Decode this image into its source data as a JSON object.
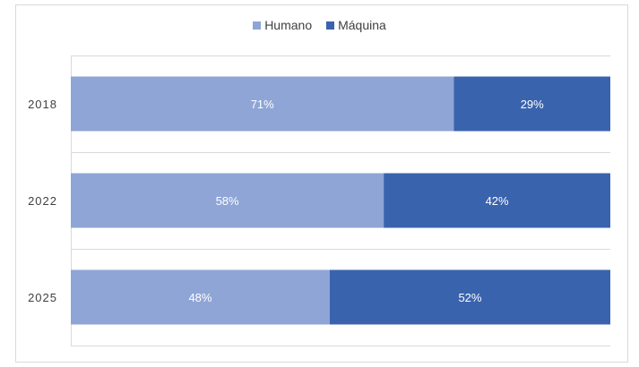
{
  "chart_data": {
    "type": "bar",
    "orientation": "horizontal",
    "stacked": "percent",
    "title": "",
    "xlabel": "",
    "ylabel": "",
    "categories": [
      "2018",
      "2022",
      "2025"
    ],
    "series": [
      {
        "name": "Humano",
        "values": [
          71,
          58,
          48
        ],
        "labels": [
          "71%",
          "58%",
          "48%"
        ],
        "color": "#8FA5D6"
      },
      {
        "name": "Máquina",
        "values": [
          29,
          42,
          52
        ],
        "labels": [
          "29%",
          "42%",
          "52%"
        ],
        "color": "#3A63AD"
      }
    ],
    "xlim": [
      0,
      100
    ],
    "grid": true,
    "legend_position": "top"
  }
}
